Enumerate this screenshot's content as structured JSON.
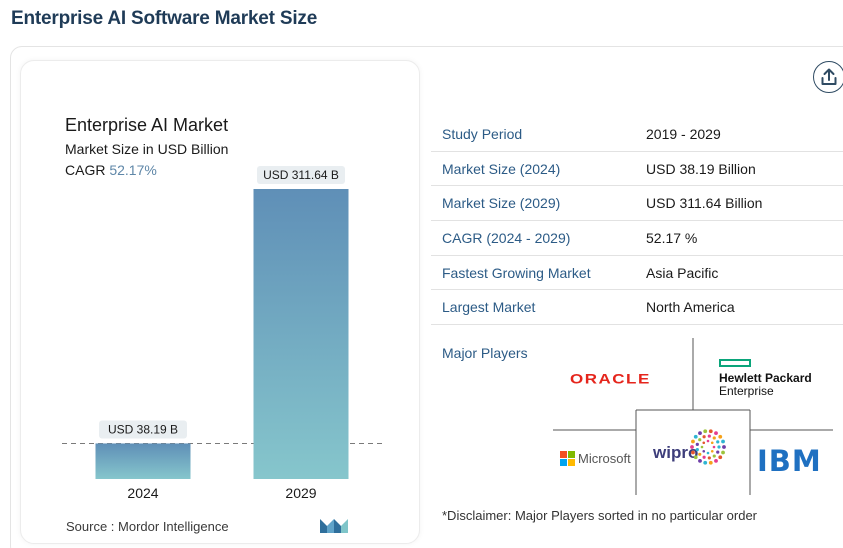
{
  "page": {
    "title": "Enterprise AI Software Market Size"
  },
  "chart": {
    "title": "Enterprise AI Market",
    "subtitle": "Market Size in USD Billion",
    "cagr_label": "CAGR",
    "cagr_value": "52.17%",
    "source": "Source :  Mordor Intelligence"
  },
  "chart_data": {
    "type": "bar",
    "categories": [
      "2024",
      "2029"
    ],
    "values": [
      38.19,
      311.64
    ],
    "data_labels": [
      "USD 38.19 B",
      "USD 311.64 B"
    ],
    "title": "Enterprise AI Market",
    "ylabel": "Market Size in USD Billion",
    "xlabel": "",
    "ylim": [
      0,
      311.64
    ],
    "grid": false,
    "colors": [
      "#5f8fb7",
      "#86c6cc"
    ]
  },
  "share": {
    "icon": "upload-icon"
  },
  "table": {
    "rows": [
      {
        "key": "Study Period",
        "value": "2019 - 2029"
      },
      {
        "key": "Market Size (2024)",
        "value": "USD 38.19 Billion"
      },
      {
        "key": "Market Size (2029)",
        "value": "USD 311.64 Billion"
      },
      {
        "key": "CAGR (2024 - 2029)",
        "value": "52.17 %"
      },
      {
        "key": "Fastest Growing Market",
        "value": "Asia Pacific"
      },
      {
        "key": "Largest Market",
        "value": "North America"
      }
    ]
  },
  "players": {
    "label": "Major Players",
    "oracle": "ORACLE",
    "hpe_line1": "Hewlett Packard",
    "hpe_line2": "Enterprise",
    "microsoft": "Microsoft",
    "wipro": "wipro",
    "ibm": "IBM"
  },
  "disclaimer": "*Disclaimer: Major Players sorted in no particular order",
  "colors": {
    "title": "#1f3b57",
    "key": "#2c5b86",
    "cagr": "#5f87a8"
  }
}
